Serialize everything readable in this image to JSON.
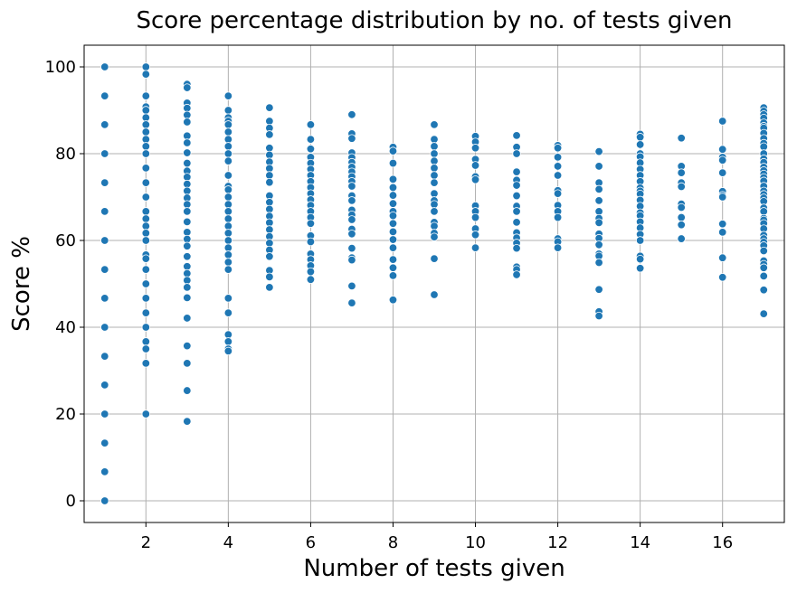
{
  "chart_data": {
    "type": "scatter",
    "title": "Score percentage distribution by no. of tests given",
    "xlabel": "Number of tests given",
    "ylabel": "Score %",
    "xlim": [
      0.5,
      17.5
    ],
    "ylim": [
      -5,
      105
    ],
    "xticks": [
      2,
      4,
      6,
      8,
      10,
      12,
      14,
      16
    ],
    "yticks": [
      0,
      20,
      40,
      60,
      80,
      100
    ],
    "grid": true,
    "marker_color": "#1f77b4",
    "marker_edge_color": "#ffffff",
    "points": [
      {
        "x": 1,
        "ys": [
          100,
          93.3,
          86.7,
          80,
          73.3,
          66.7,
          60,
          53.3,
          46.7,
          40,
          33.3,
          26.7,
          20,
          13.3,
          6.7,
          0
        ]
      },
      {
        "x": 2,
        "ys": [
          100,
          98.3,
          93.3,
          90.8,
          90,
          88.3,
          86.7,
          85,
          83.3,
          81.7,
          80,
          76.7,
          73.3,
          70,
          66.7,
          65,
          63.3,
          61.7,
          60,
          56.7,
          55.8,
          53.3,
          50,
          46.7,
          43.3,
          40,
          36.7,
          35,
          31.7,
          20
        ]
      },
      {
        "x": 3,
        "ys": [
          96,
          95.2,
          91.7,
          90.5,
          88.9,
          87.3,
          84.1,
          82.5,
          80.2,
          77.8,
          76,
          74.6,
          73,
          71.4,
          69.8,
          68.3,
          66.7,
          64.3,
          61.9,
          60.3,
          58.7,
          56.3,
          54,
          52.4,
          50.8,
          49.2,
          46.8,
          42.1,
          35.7,
          31.7,
          25.4,
          18.3
        ]
      },
      {
        "x": 4,
        "ys": [
          93.3,
          90,
          88.3,
          87.5,
          86.7,
          85,
          83.3,
          81.7,
          80,
          78.3,
          75,
          72.5,
          71.7,
          70,
          68.3,
          66.7,
          65,
          63.3,
          61.7,
          60,
          58.3,
          56.7,
          55,
          53.3,
          46.7,
          43.3,
          38.3,
          36.7,
          35,
          34.5
        ]
      },
      {
        "x": 5,
        "ys": [
          90.6,
          87.5,
          85.9,
          84.4,
          81.3,
          79.7,
          78.1,
          76.6,
          75,
          73.4,
          70.3,
          68.8,
          67.2,
          65.6,
          64.1,
          62.5,
          60.9,
          59.4,
          57.8,
          56.3,
          53.1,
          51.6,
          49.2
        ]
      },
      {
        "x": 6,
        "ys": [
          86.7,
          83.3,
          81.1,
          79.2,
          77.8,
          76.4,
          75,
          73.6,
          72.2,
          70.8,
          69.4,
          68.1,
          66.7,
          65.3,
          63.9,
          61.1,
          59.7,
          56.9,
          55.6,
          54.2,
          52.8,
          51
        ]
      },
      {
        "x": 7,
        "ys": [
          89,
          84.6,
          83.5,
          80.2,
          79.1,
          78,
          76.9,
          75.8,
          74.7,
          73.6,
          72.5,
          70.3,
          69.2,
          67,
          65.9,
          64.8,
          62.6,
          61.5,
          58.2,
          56,
          55.5,
          49.5,
          45.6
        ]
      },
      {
        "x": 8,
        "ys": [
          81.5,
          80.6,
          77.8,
          74.1,
          72.2,
          70.4,
          68.5,
          66.7,
          65.7,
          63.9,
          62,
          60.2,
          58.3,
          55.6,
          53.7,
          51.9,
          46.3
        ]
      },
      {
        "x": 9,
        "ys": [
          86.7,
          83.3,
          81.7,
          80,
          78.3,
          76.7,
          75,
          73.3,
          70.8,
          69.2,
          68.3,
          66.7,
          64.2,
          63.3,
          61.7,
          60.8,
          55.8,
          47.5
        ]
      },
      {
        "x": 10,
        "ys": [
          84,
          82.7,
          81.3,
          78.7,
          77.3,
          74.7,
          74,
          68,
          66.7,
          65.3,
          62.7,
          61.3,
          58.3
        ]
      },
      {
        "x": 11,
        "ys": [
          84.2,
          81.5,
          80,
          75.8,
          73.9,
          72.7,
          70.3,
          67.9,
          66.7,
          64.2,
          61.8,
          60.6,
          59.4,
          58.2,
          53.9,
          53.3,
          52.1
        ]
      },
      {
        "x": 12,
        "ys": [
          81.9,
          81.3,
          79.2,
          77.1,
          75,
          71.5,
          70.8,
          68.1,
          66.7,
          65.3,
          60.4,
          59.7,
          58.3
        ]
      },
      {
        "x": 13,
        "ys": [
          80.5,
          77.1,
          73.3,
          71.8,
          69.2,
          66.7,
          65.1,
          64.1,
          61.5,
          60.5,
          59,
          56.9,
          56.4,
          54.9,
          48.7,
          43.6,
          42.6
        ]
      },
      {
        "x": 14,
        "ys": [
          84.5,
          83.8,
          82.1,
          80,
          79.3,
          77.9,
          76.4,
          75,
          73.6,
          72.1,
          71.4,
          70.7,
          69.3,
          67.9,
          66.4,
          65.7,
          64.3,
          62.9,
          61.4,
          60,
          56.4,
          55.7,
          53.6
        ]
      },
      {
        "x": 15,
        "ys": [
          83.6,
          77.1,
          75.6,
          73.3,
          72.4,
          68.4,
          67.6,
          65.3,
          63.6,
          60.4
        ]
      },
      {
        "x": 16,
        "ys": [
          87.5,
          81,
          79.2,
          78.5,
          75.6,
          71.3,
          70.4,
          70,
          63.8,
          61.9,
          56,
          51.5
        ]
      },
      {
        "x": 17,
        "ys": [
          90.6,
          89.8,
          89,
          88.2,
          87.1,
          86.3,
          85.9,
          84.7,
          83.5,
          82.4,
          81.6,
          80,
          78.8,
          78,
          76.9,
          76.1,
          75.3,
          74.5,
          73.7,
          72.5,
          71.4,
          70.6,
          69.8,
          69,
          67.5,
          66.7,
          65.1,
          64.7,
          63.9,
          62.7,
          61.2,
          60.4,
          59.6,
          58.8,
          57.6,
          55.3,
          54.5,
          53.7,
          51.8,
          48.6,
          43.1
        ]
      }
    ]
  }
}
